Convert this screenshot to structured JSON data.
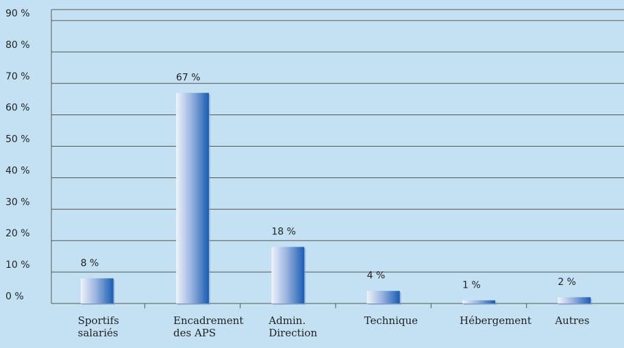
{
  "chart_data": {
    "type": "bar",
    "categories": [
      "Sportifs salariés",
      "Encadrement des APS",
      "Admin. Direction",
      "Technique",
      "Hébergement",
      "Autres"
    ],
    "values": [
      8,
      67,
      18,
      4,
      1,
      2
    ],
    "value_labels": [
      "8 %",
      "67 %",
      "18 %",
      "4 %",
      "1 %",
      "2 %"
    ],
    "color": "#1a5cb3",
    "ylim": [
      0,
      90
    ],
    "yticks": [
      {
        "value": 0,
        "label": "0 %"
      },
      {
        "value": 10,
        "label": "10 %"
      },
      {
        "value": 20,
        "label": "20 %"
      },
      {
        "value": 30,
        "label": "30 %"
      },
      {
        "value": 40,
        "label": "40 %"
      },
      {
        "value": 50,
        "label": "50 %"
      },
      {
        "value": 60,
        "label": "60 %"
      },
      {
        "value": 70,
        "label": "70 %"
      },
      {
        "value": 80,
        "label": "80 %"
      },
      {
        "value": 90,
        "label": "90 %"
      }
    ],
    "grid": true
  }
}
